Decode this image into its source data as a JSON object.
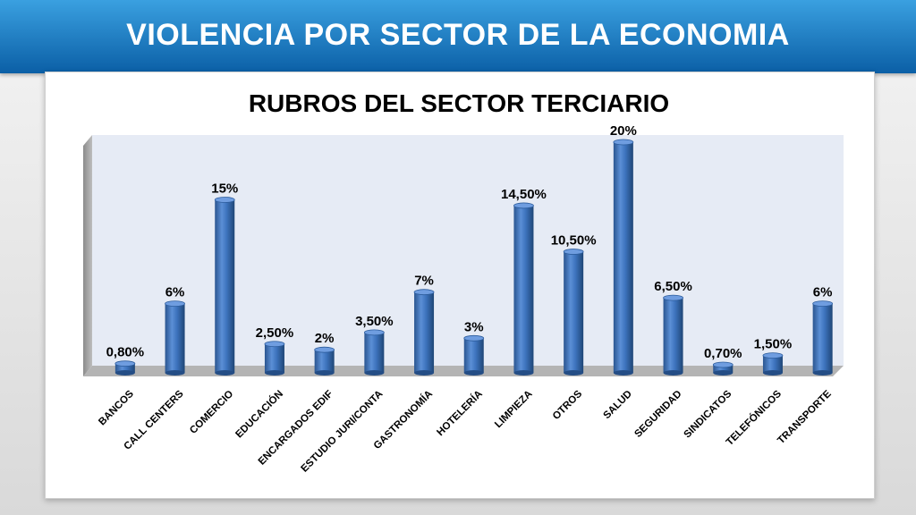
{
  "header": {
    "title": "VIOLENCIA POR SECTOR DE LA ECONOMIA"
  },
  "colors": {
    "banner": "#1b7fcf",
    "bar": "#3a6fb4",
    "plot_back": "#e6ebf5"
  },
  "chart_data": {
    "type": "bar",
    "title": "RUBROS DEL SECTOR TERCIARIO",
    "xlabel": "",
    "ylabel": "",
    "ylim": [
      0,
      20
    ],
    "grid": false,
    "legend": "none",
    "categories": [
      "BANCOS",
      "CALL CENTERS",
      "COMERCIO",
      "EDUCACIÓN",
      "ENCARGADOS EDIF",
      "ESTUDIO JURI/CONTA",
      "GASTRONOMÍA",
      "HOTELERÍA",
      "LIMPIEZA",
      "OTROS",
      "SALUD",
      "SEGURIDAD",
      "SINDICATOS",
      "TELEFÓNICOS",
      "TRANSPORTE"
    ],
    "values": [
      0.8,
      6,
      15,
      2.5,
      2,
      3.5,
      7,
      3,
      14.5,
      10.5,
      20,
      6.5,
      0.7,
      1.5,
      6
    ],
    "labels": [
      "0,80%",
      "6%",
      "15%",
      "2,50%",
      "2%",
      "3,50%",
      "7%",
      "3%",
      "14,50%",
      "10,50%",
      "20%",
      "6,50%",
      "0,70%",
      "1,50%",
      "6%"
    ]
  }
}
